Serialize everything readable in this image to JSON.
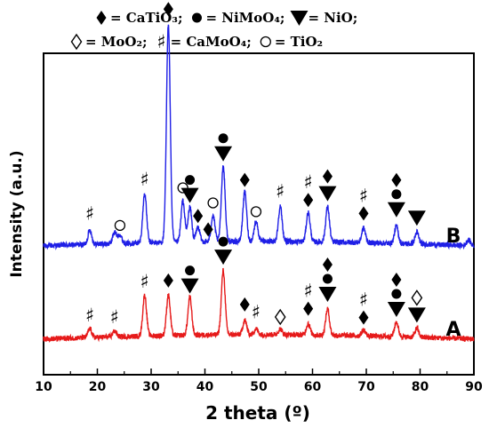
{
  "chart_data": {
    "type": "line",
    "xlabel": "2 theta (º)",
    "ylabel": "Intensity (a.u.)",
    "xlim": [
      10,
      90
    ],
    "xticks": [
      "10",
      "20",
      "30",
      "40",
      "50",
      "60",
      "70",
      "80",
      "90"
    ],
    "legend": {
      "line1": [
        {
          "symbol": "diamond-filled",
          "text": "= CaTiO₃;"
        },
        {
          "symbol": "circle-filled",
          "text": "= NiMoO₄;"
        },
        {
          "symbol": "triangle-down-filled",
          "text": "= NiO;"
        }
      ],
      "line2": [
        {
          "symbol": "diamond-open",
          "text": "= MoO₂;"
        },
        {
          "symbol": "sharp",
          "text": "= CaMoO₄;"
        },
        {
          "symbol": "circle-open",
          "text": "= TiO₂"
        }
      ]
    },
    "series": [
      {
        "name": "B",
        "color": "#1f1fe6",
        "baseline": 0.4,
        "peaks": [
          [
            18.6,
            0.05
          ],
          [
            23.2,
            0.04
          ],
          [
            24.2,
            0.03
          ],
          [
            28.8,
            0.17
          ],
          [
            33.2,
            0.75
          ],
          [
            35.9,
            0.14
          ],
          [
            37.2,
            0.12
          ],
          [
            38.7,
            0.05
          ],
          [
            41.5,
            0.09
          ],
          [
            43.4,
            0.26
          ],
          [
            47.4,
            0.17
          ],
          [
            49.5,
            0.07
          ],
          [
            54.0,
            0.12
          ],
          [
            59.2,
            0.1
          ],
          [
            62.8,
            0.12
          ],
          [
            69.5,
            0.05
          ],
          [
            75.6,
            0.06
          ],
          [
            79.4,
            0.04
          ],
          [
            89.0,
            0.02
          ]
        ],
        "markers": [
          {
            "x": 18.6,
            "symbols": [
              "sharp"
            ]
          },
          {
            "x": 24.2,
            "symbols": [
              "circle-open"
            ]
          },
          {
            "x": 28.8,
            "symbols": [
              "sharp"
            ]
          },
          {
            "x": 33.2,
            "symbols": [
              "diamond-filled"
            ]
          },
          {
            "x": 35.9,
            "symbols": [
              "circle-open"
            ]
          },
          {
            "x": 37.2,
            "symbols": [
              "circle-filled",
              "triangle-down-filled"
            ]
          },
          {
            "x": 38.7,
            "symbols": [
              "diamond-filled"
            ]
          },
          {
            "x": 41.5,
            "symbols": [
              "circle-open"
            ]
          },
          {
            "x": 40.6,
            "symbols": [
              "diamond-filled"
            ]
          },
          {
            "x": 43.4,
            "symbols": [
              "circle-filled",
              "triangle-down-filled"
            ]
          },
          {
            "x": 47.4,
            "symbols": [
              "diamond-filled"
            ]
          },
          {
            "x": 49.5,
            "symbols": [
              "circle-open"
            ]
          },
          {
            "x": 54.0,
            "symbols": [
              "sharp"
            ]
          },
          {
            "x": 59.2,
            "symbols": [
              "sharp",
              "diamond-filled"
            ]
          },
          {
            "x": 62.8,
            "symbols": [
              "diamond-filled",
              "triangle-down-filled"
            ]
          },
          {
            "x": 69.5,
            "symbols": [
              "sharp",
              "diamond-filled"
            ]
          },
          {
            "x": 75.6,
            "symbols": [
              "diamond-filled",
              "circle-filled",
              "triangle-down-filled"
            ]
          },
          {
            "x": 79.4,
            "symbols": [
              "triangle-down-filled"
            ]
          }
        ]
      },
      {
        "name": "A",
        "color": "#e61a1a",
        "baseline": 0.08,
        "peaks": [
          [
            18.6,
            0.03
          ],
          [
            23.2,
            0.02
          ],
          [
            28.8,
            0.14
          ],
          [
            33.2,
            0.14
          ],
          [
            37.2,
            0.13
          ],
          [
            43.4,
            0.22
          ],
          [
            47.4,
            0.05
          ],
          [
            49.5,
            0.02
          ],
          [
            54.0,
            0.02
          ],
          [
            59.2,
            0.04
          ],
          [
            62.8,
            0.09
          ],
          [
            69.5,
            0.02
          ],
          [
            75.6,
            0.05
          ],
          [
            79.4,
            0.03
          ]
        ],
        "markers": [
          {
            "x": 18.6,
            "symbols": [
              "sharp"
            ]
          },
          {
            "x": 23.2,
            "symbols": [
              "sharp"
            ]
          },
          {
            "x": 28.8,
            "symbols": [
              "sharp"
            ]
          },
          {
            "x": 33.2,
            "symbols": [
              "diamond-filled"
            ]
          },
          {
            "x": 37.2,
            "symbols": [
              "circle-filled",
              "triangle-down-filled"
            ]
          },
          {
            "x": 43.4,
            "symbols": [
              "circle-filled",
              "triangle-down-filled"
            ]
          },
          {
            "x": 47.4,
            "symbols": [
              "diamond-filled"
            ]
          },
          {
            "x": 49.5,
            "symbols": [
              "sharp"
            ]
          },
          {
            "x": 54.0,
            "symbols": [
              "diamond-open"
            ]
          },
          {
            "x": 59.2,
            "symbols": [
              "sharp",
              "diamond-filled"
            ]
          },
          {
            "x": 62.8,
            "symbols": [
              "diamond-filled",
              "circle-filled",
              "triangle-down-filled"
            ]
          },
          {
            "x": 69.5,
            "symbols": [
              "sharp",
              "diamond-filled"
            ]
          },
          {
            "x": 75.6,
            "symbols": [
              "diamond-filled",
              "circle-filled",
              "triangle-down-filled"
            ]
          },
          {
            "x": 79.4,
            "symbols": [
              "diamond-open",
              "triangle-down-filled"
            ]
          }
        ]
      }
    ]
  }
}
